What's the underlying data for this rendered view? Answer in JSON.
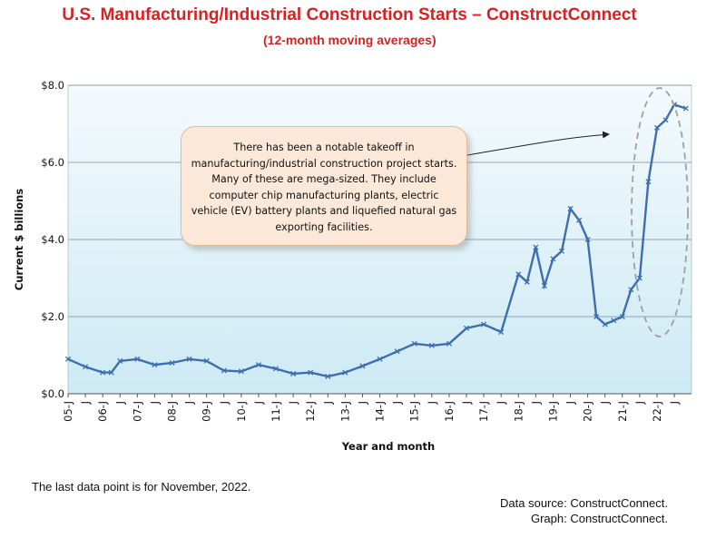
{
  "title": "U.S. Manufacturing/Industrial Construction Starts – ConstructConnect",
  "subtitle": "(12-month moving averages)",
  "annotation": "There has been a notable takeoff in manufacturing/industrial construction project starts. Many of these are mega-sized. They include computer chip manufacturing plants, electric vehicle (EV) battery plants and liquefied natural gas exporting facilities.",
  "footnote": "The last data point is for November, 2022.",
  "source": {
    "data": "Data source: ConstructConnect.",
    "graph": "Graph: ConstructConnect."
  },
  "colors": {
    "title": "#d92121",
    "line": "#3d6fb0",
    "plot_bg_top": "#f4fafd",
    "plot_bg_bottom": "#cdeaf4",
    "callout_bg": "#fbe8d8",
    "highlight_oval": "#a0a0a0"
  },
  "chart_data": {
    "type": "line",
    "title": "U.S. Manufacturing/Industrial Construction Starts – ConstructConnect",
    "subtitle": "(12-month moving averages)",
    "xlabel": "Year and month",
    "ylabel": "Current $ billions",
    "ylim": [
      0,
      8
    ],
    "yticks": [
      "$0.0",
      "$2.0",
      "$4.0",
      "$6.0",
      "$8.0"
    ],
    "xticks": [
      "05-J",
      "J",
      "06-J",
      "J",
      "07-J",
      "J",
      "08-J",
      "J",
      "09-J",
      "J",
      "10-J",
      "J",
      "11-J",
      "J",
      "12-J",
      "J",
      "13-J",
      "J",
      "14-J",
      "J",
      "15-J",
      "J",
      "16-J",
      "J",
      "17-J",
      "J",
      "18-J",
      "J",
      "19-J",
      "J",
      "20-J",
      "J",
      "21-J",
      "J",
      "22-J",
      "J"
    ],
    "grid": true,
    "legend": "none",
    "markers": "x",
    "series": [
      {
        "x": [
          "2005-01",
          "2005-07",
          "2006-01",
          "2006-04",
          "2006-07",
          "2007-01",
          "2007-07",
          "2008-01",
          "2008-07",
          "2009-01",
          "2009-07",
          "2010-01",
          "2010-07",
          "2011-01",
          "2011-07",
          "2012-01",
          "2012-07",
          "2013-01",
          "2013-07",
          "2014-01",
          "2014-07",
          "2015-01",
          "2015-07",
          "2016-01",
          "2016-07",
          "2017-01",
          "2017-07",
          "2018-01",
          "2018-04",
          "2018-07",
          "2018-10",
          "2019-01",
          "2019-04",
          "2019-07",
          "2019-10",
          "2020-01",
          "2020-04",
          "2020-07",
          "2020-10",
          "2021-01",
          "2021-04",
          "2021-07",
          "2021-10",
          "2022-01",
          "2022-04",
          "2022-07",
          "2022-11"
        ],
        "y": [
          0.9,
          0.7,
          0.55,
          0.55,
          0.85,
          0.9,
          0.75,
          0.8,
          0.9,
          0.85,
          0.6,
          0.58,
          0.75,
          0.65,
          0.52,
          0.55,
          0.45,
          0.55,
          0.72,
          0.9,
          1.1,
          1.3,
          1.25,
          1.3,
          1.7,
          1.8,
          1.6,
          3.1,
          2.9,
          3.8,
          2.8,
          3.5,
          3.7,
          4.8,
          4.5,
          4.0,
          2.0,
          1.8,
          1.9,
          2.0,
          2.7,
          3.0,
          5.5,
          6.9,
          7.1,
          7.5,
          7.4
        ]
      }
    ]
  }
}
